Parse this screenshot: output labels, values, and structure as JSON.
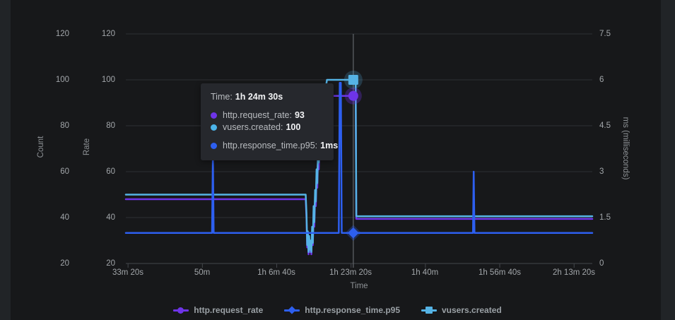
{
  "chart": {
    "axes": {
      "count": {
        "title": "Count",
        "ticks": [
          "120",
          "100",
          "80",
          "60",
          "40",
          "20"
        ]
      },
      "rate": {
        "title": "Rate",
        "ticks": [
          "120",
          "100",
          "80",
          "60",
          "40",
          "20"
        ]
      },
      "ms": {
        "title": "ms (milliseconds)",
        "ticks": [
          "7.5",
          "6",
          "4.5",
          "3",
          "1.5",
          "0"
        ]
      },
      "x": {
        "title": "Time",
        "ticks": [
          "33m 20s",
          "50m",
          "1h 6m 40s",
          "1h 23m 20s",
          "1h 40m",
          "1h 56m 40s",
          "2h 13m 20s"
        ]
      }
    }
  },
  "tooltip": {
    "time_label": "Time:",
    "time_value": "1h 24m 30s",
    "rows": [
      {
        "name": "http.request_rate:",
        "value": "93",
        "color": "#6e34e8"
      },
      {
        "name": "vusers.created:",
        "value": "100",
        "color": "#4cb5ea"
      },
      {
        "name": "http.response_time.p95:",
        "value": "1ms",
        "color": "#2d5ff0"
      }
    ]
  },
  "legend": {
    "items": [
      {
        "label": "http.request_rate",
        "color": "#6e34e8",
        "marker": "circle"
      },
      {
        "label": "http.response_time.p95",
        "color": "#2d5ff0",
        "marker": "diamond"
      },
      {
        "label": "vusers.created",
        "color": "#55b3e5",
        "marker": "square"
      }
    ]
  },
  "colors": {
    "background": "#17181a",
    "edge_strip": "#212427",
    "grid": "#2e3034",
    "axis_line": "#43464b",
    "tick_text": "#a2a6aa",
    "axis_title": "#8e9296",
    "crosshair": "#62666b",
    "tooltip_bg": "#26282d",
    "purple": "#6e34e8",
    "blue": "#2d5ff0",
    "cyan": "#55b3e5"
  },
  "chart_data": {
    "type": "line",
    "title": "",
    "xlabel": "Time",
    "legend_position": "bottom",
    "grid": "horizontal-only",
    "x_unit": "seconds",
    "x_range_s": [
      1970,
      8245
    ],
    "x_ticks_s": [
      2000,
      3000,
      4000,
      5000,
      6000,
      7000,
      8000
    ],
    "x_tick_labels": [
      "33m 20s",
      "50m",
      "1h 6m 40s",
      "1h 23m 20s",
      "1h 40m",
      "1h 56m 40s",
      "2h 13m 20s"
    ],
    "left_axis": {
      "labels": [
        "Count",
        "Rate"
      ],
      "range": [
        20,
        120
      ],
      "ticks": [
        120,
        100,
        80,
        60,
        40,
        20
      ]
    },
    "right_axis": {
      "label": "ms (milliseconds)",
      "range": [
        0,
        7.5
      ],
      "ticks": [
        7.5,
        6,
        4.5,
        3,
        1.5,
        0
      ]
    },
    "series": [
      {
        "name": "http.request_rate",
        "axis": "left",
        "color": "#6e34e8",
        "marker": "circle",
        "points": [
          [
            1970,
            48
          ],
          [
            4390,
            48
          ],
          [
            4400,
            40
          ],
          [
            4410,
            27
          ],
          [
            4418,
            33
          ],
          [
            4428,
            24
          ],
          [
            4436,
            31
          ],
          [
            4446,
            25
          ],
          [
            4456,
            29
          ],
          [
            4466,
            24
          ],
          [
            4476,
            34
          ],
          [
            4486,
            28
          ],
          [
            4496,
            43
          ],
          [
            4506,
            36
          ],
          [
            4516,
            50
          ],
          [
            4526,
            45
          ],
          [
            4536,
            58
          ],
          [
            4546,
            53
          ],
          [
            4556,
            67
          ],
          [
            4566,
            61
          ],
          [
            4576,
            74
          ],
          [
            4586,
            69
          ],
          [
            4600,
            78
          ],
          [
            4612,
            83
          ],
          [
            4624,
            79
          ],
          [
            4638,
            88
          ],
          [
            4650,
            86
          ],
          [
            4662,
            93
          ],
          [
            5062,
            93
          ],
          [
            5070,
            39.4
          ],
          [
            8245,
            39.4
          ]
        ]
      },
      {
        "name": "vusers.created",
        "axis": "left",
        "color": "#55b3e5",
        "marker": "square",
        "points": [
          [
            1970,
            50
          ],
          [
            4390,
            50
          ],
          [
            4400,
            42
          ],
          [
            4410,
            28
          ],
          [
            4418,
            34
          ],
          [
            4428,
            25
          ],
          [
            4436,
            32
          ],
          [
            4446,
            26
          ],
          [
            4456,
            30
          ],
          [
            4466,
            25
          ],
          [
            4476,
            36
          ],
          [
            4486,
            29
          ],
          [
            4496,
            45
          ],
          [
            4506,
            38
          ],
          [
            4516,
            52
          ],
          [
            4526,
            47
          ],
          [
            4536,
            61
          ],
          [
            4546,
            55
          ],
          [
            4556,
            70
          ],
          [
            4566,
            64
          ],
          [
            4576,
            78
          ],
          [
            4586,
            72
          ],
          [
            4600,
            82
          ],
          [
            4612,
            87
          ],
          [
            4624,
            83
          ],
          [
            4638,
            92
          ],
          [
            4650,
            89
          ],
          [
            4662,
            97
          ],
          [
            4676,
            100
          ],
          [
            5062,
            100
          ],
          [
            5070,
            40.6
          ],
          [
            8245,
            40.6
          ]
        ]
      },
      {
        "name": "http.response_time.p95",
        "axis": "right",
        "color": "#2d5ff0",
        "marker": "diamond",
        "points": [
          [
            1970,
            1
          ],
          [
            3130,
            1
          ],
          [
            3141,
            3.5
          ],
          [
            3152,
            1
          ],
          [
            4835,
            1
          ],
          [
            4848,
            5.9
          ],
          [
            4862,
            5.9
          ],
          [
            4875,
            1
          ],
          [
            6640,
            1
          ],
          [
            6650,
            3
          ],
          [
            6660,
            1
          ],
          [
            8245,
            1
          ]
        ]
      }
    ],
    "crosshair": {
      "time_s": 5030,
      "time_label": "1h 24m 30s",
      "values": {
        "http.request_rate": 93,
        "vusers.created": 100,
        "http.response_time.p95_ms": 1
      }
    }
  }
}
